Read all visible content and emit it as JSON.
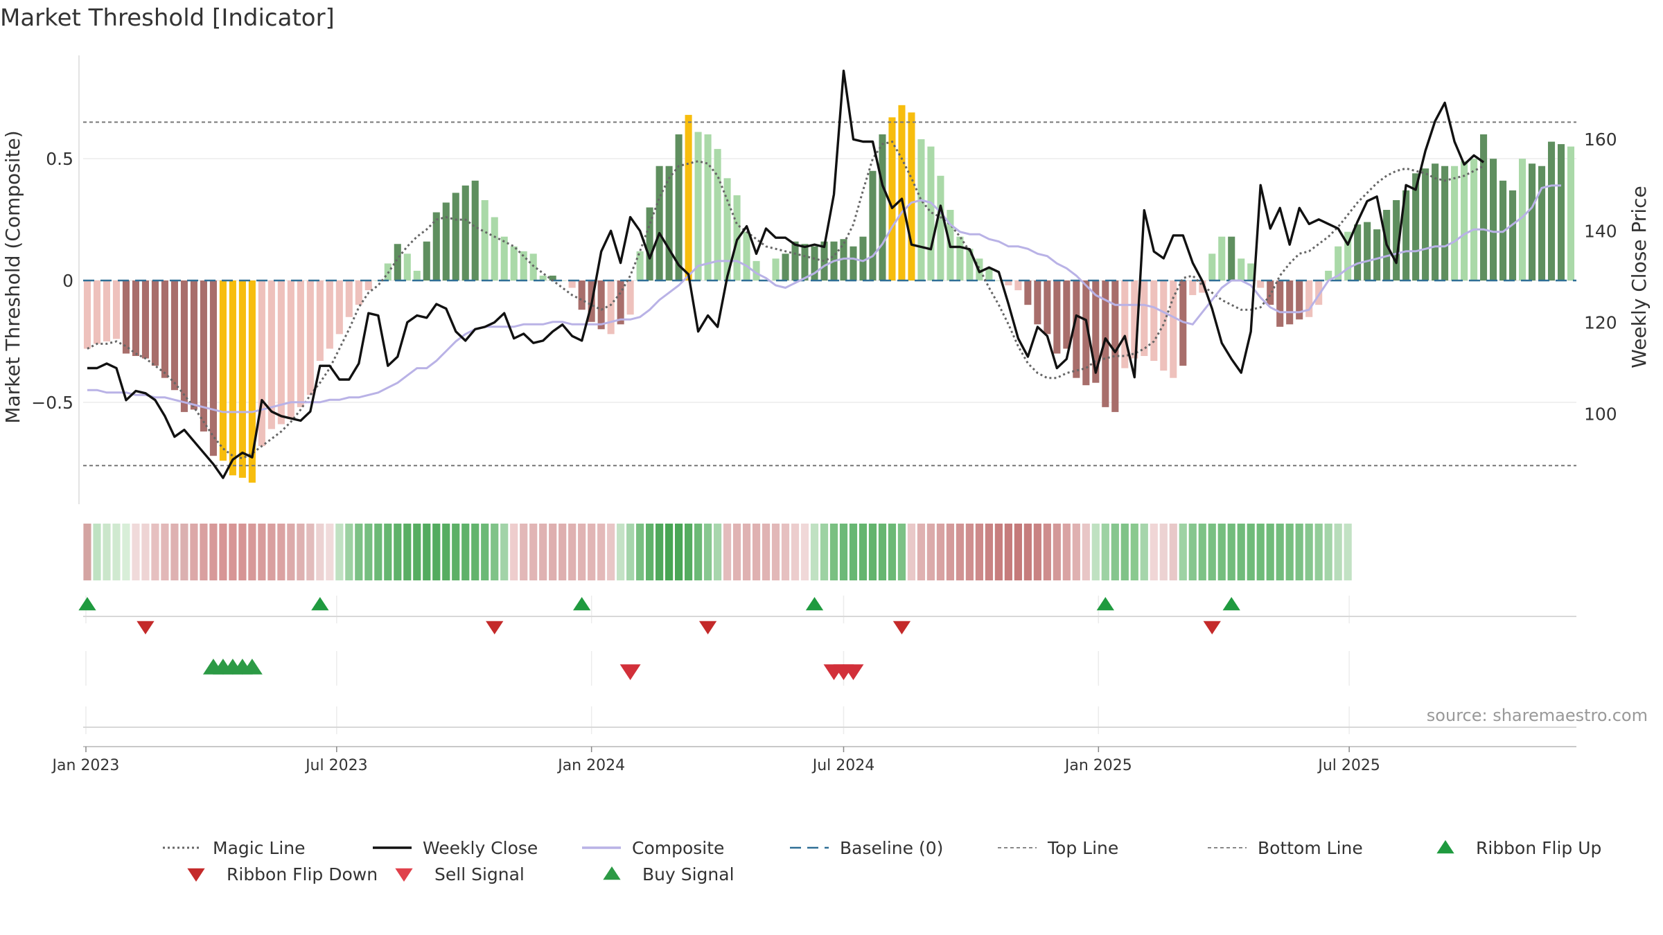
{
  "chart_data": {
    "type": "bar",
    "title": "Market Threshold [Indicator]",
    "ylabel": "Market Threshold (Composite)",
    "y2label": "Weekly Close Price",
    "source_text": "source: sharemaestro.com",
    "ylim": [
      -0.91,
      0.91
    ],
    "y2lim": [
      80.7,
      177.6
    ],
    "yticks": [
      -0.5,
      0,
      0.5
    ],
    "ytick_labels": [
      "−0.5",
      "0",
      "0.5"
    ],
    "y2ticks": [
      100,
      120,
      140,
      160
    ],
    "y2tick_labels": [
      "100",
      "120",
      "140",
      "160"
    ],
    "top_line": 0.65,
    "bottom_line": -0.76,
    "baseline": 0,
    "x_start": "2023-01-02",
    "x_step_days": 7,
    "xticks": [
      {
        "date": "2023-01-01",
        "label": "Jan 2023"
      },
      {
        "date": "2023-07-01",
        "label": "Jul 2023"
      },
      {
        "date": "2024-01-01",
        "label": "Jan 2024"
      },
      {
        "date": "2024-07-01",
        "label": "Jul 2024"
      },
      {
        "date": "2025-01-01",
        "label": "Jan 2025"
      },
      {
        "date": "2025-07-01",
        "label": "Jul 2025"
      }
    ],
    "colors": {
      "strong_pos": "#5f8f5f",
      "weak_pos": "#aad9a8",
      "strong_neg": "#a86e6b",
      "weak_neg": "#eec1bc",
      "extreme": "#f7bd0e",
      "close": "#111111",
      "composite": "#b9b2e6",
      "magic": "#666666",
      "baseline": "#2f6f96",
      "guide": "#777777",
      "signal_up": "#2c9a45",
      "signal_down": "#d2303a"
    },
    "bars": [
      -0.28,
      -0.26,
      -0.25,
      -0.24,
      -0.3,
      -0.31,
      -0.32,
      -0.35,
      -0.4,
      -0.45,
      -0.54,
      -0.53,
      -0.62,
      -0.72,
      -0.74,
      -0.8,
      -0.81,
      -0.83,
      -0.68,
      -0.61,
      -0.59,
      -0.57,
      -0.52,
      -0.47,
      -0.33,
      -0.28,
      -0.22,
      -0.15,
      -0.1,
      -0.04,
      0.0,
      0.07,
      0.15,
      0.11,
      0.04,
      0.16,
      0.28,
      0.32,
      0.36,
      0.39,
      0.41,
      0.33,
      0.26,
      0.18,
      0.14,
      0.12,
      0.11,
      0.02,
      0.02,
      0.0,
      -0.03,
      -0.12,
      -0.17,
      -0.2,
      -0.22,
      -0.18,
      -0.14,
      0.12,
      0.3,
      0.47,
      0.47,
      0.6,
      0.68,
      0.61,
      0.6,
      0.54,
      0.42,
      0.35,
      0.2,
      0.08,
      0.0,
      0.09,
      0.11,
      0.16,
      0.15,
      0.14,
      0.16,
      0.16,
      0.17,
      0.14,
      0.18,
      0.45,
      0.6,
      0.67,
      0.72,
      0.69,
      0.58,
      0.55,
      0.43,
      0.29,
      0.18,
      0.13,
      0.09,
      0.05,
      0.0,
      -0.02,
      -0.04,
      -0.1,
      -0.18,
      -0.22,
      -0.3,
      -0.28,
      -0.4,
      -0.43,
      -0.42,
      -0.52,
      -0.54,
      -0.36,
      -0.32,
      -0.31,
      -0.33,
      -0.37,
      -0.4,
      -0.35,
      -0.06,
      -0.05,
      0.11,
      0.18,
      0.18,
      0.09,
      0.07,
      -0.03,
      -0.1,
      -0.19,
      -0.18,
      -0.16,
      -0.15,
      -0.1,
      0.04,
      0.14,
      0.2,
      0.23,
      0.24,
      0.21,
      0.29,
      0.33,
      0.37,
      0.44,
      0.46,
      0.48,
      0.47,
      0.47,
      0.49,
      0.5,
      0.6,
      0.5,
      0.41,
      0.37,
      0.5,
      0.48,
      0.47,
      0.57,
      0.56,
      0.55
    ],
    "bar_shade": [
      "w",
      "w",
      "w",
      "w",
      "s",
      "s",
      "s",
      "s",
      "s",
      "s",
      "s",
      "s",
      "s",
      "s",
      "e",
      "e",
      "e",
      "e",
      "w",
      "w",
      "w",
      "w",
      "w",
      "w",
      "w",
      "w",
      "w",
      "w",
      "w",
      "w",
      "w",
      "w",
      "s",
      "w",
      "w",
      "s",
      "s",
      "s",
      "s",
      "s",
      "s",
      "w",
      "w",
      "w",
      "w",
      "w",
      "w",
      "w",
      "s",
      "w",
      "w",
      "s",
      "s",
      "s",
      "w",
      "s",
      "w",
      "w",
      "s",
      "s",
      "s",
      "s",
      "e",
      "w",
      "w",
      "w",
      "w",
      "w",
      "w",
      "w",
      "w",
      "w",
      "s",
      "s",
      "s",
      "s",
      "s",
      "s",
      "s",
      "s",
      "s",
      "s",
      "s",
      "e",
      "e",
      "e",
      "w",
      "w",
      "w",
      "w",
      "w",
      "w",
      "w",
      "w",
      "w",
      "w",
      "w",
      "s",
      "s",
      "s",
      "s",
      "s",
      "s",
      "s",
      "s",
      "s",
      "s",
      "w",
      "w",
      "w",
      "w",
      "w",
      "w",
      "s",
      "w",
      "w",
      "w",
      "w",
      "s",
      "w",
      "w",
      "w",
      "s",
      "s",
      "s",
      "s",
      "w",
      "w",
      "w",
      "w",
      "w",
      "s",
      "s",
      "s",
      "s",
      "s",
      "s",
      "s",
      "s",
      "s",
      "s",
      "w",
      "w",
      "w",
      "s",
      "s",
      "s",
      "s",
      "w",
      "s",
      "s",
      "s",
      "s",
      "w",
      "w"
    ],
    "composite": [
      -0.45,
      -0.45,
      -0.46,
      -0.46,
      -0.46,
      -0.47,
      -0.47,
      -0.48,
      -0.48,
      -0.49,
      -0.5,
      -0.51,
      -0.52,
      -0.53,
      -0.54,
      -0.54,
      -0.54,
      -0.54,
      -0.53,
      -0.52,
      -0.51,
      -0.5,
      -0.5,
      -0.5,
      -0.5,
      -0.49,
      -0.49,
      -0.48,
      -0.48,
      -0.47,
      -0.46,
      -0.44,
      -0.42,
      -0.39,
      -0.36,
      -0.36,
      -0.33,
      -0.29,
      -0.25,
      -0.22,
      -0.2,
      -0.19,
      -0.19,
      -0.19,
      -0.19,
      -0.18,
      -0.18,
      -0.18,
      -0.17,
      -0.17,
      -0.18,
      -0.18,
      -0.18,
      -0.18,
      -0.17,
      -0.16,
      -0.16,
      -0.15,
      -0.12,
      -0.08,
      -0.05,
      -0.02,
      0.02,
      0.06,
      0.07,
      0.08,
      0.08,
      0.08,
      0.06,
      0.03,
      0.01,
      -0.02,
      -0.03,
      -0.01,
      0.01,
      0.03,
      0.06,
      0.08,
      0.09,
      0.09,
      0.08,
      0.1,
      0.15,
      0.22,
      0.28,
      0.32,
      0.33,
      0.32,
      0.28,
      0.23,
      0.2,
      0.19,
      0.19,
      0.17,
      0.16,
      0.14,
      0.14,
      0.13,
      0.11,
      0.1,
      0.07,
      0.05,
      0.02,
      -0.02,
      -0.06,
      -0.08,
      -0.1,
      -0.1,
      -0.1,
      -0.1,
      -0.11,
      -0.13,
      -0.15,
      -0.17,
      -0.18,
      -0.13,
      -0.08,
      -0.03,
      0.0,
      0.0,
      -0.02,
      -0.07,
      -0.11,
      -0.13,
      -0.13,
      -0.13,
      -0.12,
      -0.06,
      0.0,
      0.02,
      0.05,
      0.07,
      0.08,
      0.09,
      0.1,
      0.11,
      0.12,
      0.12,
      0.13,
      0.14,
      0.14,
      0.16,
      0.19,
      0.21,
      0.21,
      0.2,
      0.2,
      0.23,
      0.26,
      0.3,
      0.38,
      0.39,
      0.39
    ],
    "magic": [
      -0.28,
      -0.26,
      -0.26,
      -0.25,
      -0.27,
      -0.3,
      -0.32,
      -0.35,
      -0.38,
      -0.42,
      -0.47,
      -0.52,
      -0.58,
      -0.64,
      -0.69,
      -0.72,
      -0.73,
      -0.71,
      -0.68,
      -0.65,
      -0.62,
      -0.58,
      -0.53,
      -0.47,
      -0.42,
      -0.36,
      -0.28,
      -0.2,
      -0.11,
      -0.05,
      -0.02,
      0.03,
      0.09,
      0.14,
      0.18,
      0.21,
      0.25,
      0.26,
      0.25,
      0.25,
      0.22,
      0.2,
      0.18,
      0.16,
      0.14,
      0.1,
      0.06,
      0.03,
      0.0,
      -0.03,
      -0.06,
      -0.08,
      -0.1,
      -0.12,
      -0.1,
      -0.05,
      0.02,
      0.12,
      0.23,
      0.34,
      0.42,
      0.47,
      0.48,
      0.49,
      0.48,
      0.43,
      0.33,
      0.23,
      0.2,
      0.17,
      0.14,
      0.13,
      0.12,
      0.11,
      0.1,
      0.09,
      0.08,
      0.1,
      0.15,
      0.23,
      0.37,
      0.5,
      0.56,
      0.57,
      0.5,
      0.42,
      0.33,
      0.28,
      0.26,
      0.23,
      0.18,
      0.12,
      0.05,
      -0.03,
      -0.1,
      -0.18,
      -0.27,
      -0.34,
      -0.38,
      -0.4,
      -0.4,
      -0.38,
      -0.37,
      -0.36,
      -0.33,
      -0.32,
      -0.31,
      -0.31,
      -0.3,
      -0.28,
      -0.25,
      -0.18,
      -0.07,
      0.01,
      0.02,
      -0.02,
      -0.05,
      -0.08,
      -0.1,
      -0.12,
      -0.12,
      -0.11,
      -0.06,
      0.02,
      0.07,
      0.11,
      0.12,
      0.15,
      0.18,
      0.22,
      0.27,
      0.32,
      0.36,
      0.4,
      0.43,
      0.45,
      0.46,
      0.45,
      0.44,
      0.42,
      0.41,
      0.42,
      0.43,
      0.45,
      0.47
    ],
    "close": [
      110,
      110,
      111,
      110,
      103,
      105,
      104.5,
      103,
      99.5,
      95,
      96.5,
      94,
      91.5,
      89,
      86,
      90,
      91.5,
      90.5,
      103,
      100.5,
      99.5,
      99,
      98.5,
      100.5,
      110.5,
      110.5,
      107.5,
      107.5,
      111,
      122,
      121.5,
      110.5,
      112.5,
      120,
      121.5,
      121,
      124,
      123,
      118,
      116,
      118.5,
      119,
      120,
      122,
      116.5,
      117.5,
      115.5,
      116,
      118,
      119.5,
      117,
      116,
      124,
      135.5,
      140,
      133,
      143,
      140,
      134,
      139.5,
      136,
      132.5,
      130.5,
      118,
      121.5,
      119,
      130,
      138,
      141,
      135,
      140.5,
      138.5,
      138.5,
      137,
      136.5,
      137,
      136.5,
      148,
      175,
      160,
      159.5,
      159.5,
      150,
      145,
      147,
      137,
      136.5,
      136,
      145.5,
      136.5,
      136.5,
      136,
      131,
      132,
      131,
      124,
      116.5,
      112.5,
      119,
      117,
      110,
      112,
      121.5,
      120.5,
      109,
      116.5,
      113.5,
      117,
      108,
      144.5,
      135.5,
      134,
      139,
      139,
      133,
      129,
      123,
      115.5,
      112,
      109,
      118,
      150,
      140.5,
      145,
      137,
      145,
      141.5,
      142.5,
      141.5,
      140.5,
      137,
      142,
      146.5,
      147.5,
      137,
      133,
      150,
      149,
      157.5,
      164,
      168,
      159.5,
      154.5,
      156.5,
      155
    ],
    "ribbon_colors": [
      "#d4a4a2",
      "#bfe2c2",
      "#cbe6cb",
      "#d0e9d0",
      "#d8eed8",
      "#f0dada",
      "#eed4d4",
      "#e6c0c0",
      "#e2b8b8",
      "#deb1b1",
      "#dbb0b0",
      "#dca8a8",
      "#d9a0a0",
      "#d79999",
      "#d79595",
      "#d79595",
      "#d69494",
      "#d79999",
      "#d89c9c",
      "#d99f9f",
      "#dba2a2",
      "#dcaaaa",
      "#deb1b1",
      "#e2bcbc",
      "#ecd2d2",
      "#f0dada",
      "#c0e1c2",
      "#9cd1a2",
      "#7cc185",
      "#76be80",
      "#6cb976",
      "#66b670",
      "#5fb26a",
      "#59ae64",
      "#56ad61",
      "#53ab5f",
      "#53ab5f",
      "#56ad61",
      "#5cb066",
      "#5fb26a",
      "#63b46d",
      "#6cb976",
      "#80c388",
      "#a2d3a8",
      "#eecdcd",
      "#e2b8b8",
      "#e1b5b5",
      "#dfb2b2",
      "#deafaf",
      "#deafaf",
      "#dfb1b1",
      "#e0b3b3",
      "#e1b5b5",
      "#e3b9b9",
      "#e8c6c6",
      "#c3e2c5",
      "#a5d5ab",
      "#78bf81",
      "#5fb26a",
      "#4fa85b",
      "#47a553",
      "#4aa656",
      "#55ac60",
      "#6cb976",
      "#88c790",
      "#a8d6ad",
      "#e3bcbc",
      "#e0b3b3",
      "#dfb2b2",
      "#dfb1b1",
      "#e0b3b3",
      "#e2b8b8",
      "#e6c0c0",
      "#eccdcd",
      "#f0d8d8",
      "#c0e1c2",
      "#9dd2a3",
      "#7ac081",
      "#6db978",
      "#68b773",
      "#65b56f",
      "#63b46d",
      "#67b671",
      "#6cb976",
      "#7cc185",
      "#e9c8c8",
      "#dfb1b1",
      "#dbaaaa",
      "#d8a2a2",
      "#d49a9a",
      "#d19393",
      "#cf8f8f",
      "#cd8a8a",
      "#c98383",
      "#c77e7e",
      "#c67c7c",
      "#c57a7a",
      "#c67d7d",
      "#c98383",
      "#ce8d8d",
      "#d39898",
      "#d9a3a3",
      "#dfb1b1",
      "#e8c6c6",
      "#bfe1c1",
      "#9dd2a3",
      "#86c68e",
      "#80c388",
      "#8ac98f",
      "#a6d5ab",
      "#f0d6d6",
      "#ecd2d2",
      "#e8c8c8",
      "#9ed2a4",
      "#86c68e",
      "#7dc286",
      "#79c082",
      "#75be7e",
      "#72bc7c",
      "#70bb7a",
      "#6fbb79",
      "#6fbb79",
      "#70bb7a",
      "#73bc7d",
      "#77bf80",
      "#7cc185",
      "#86c68e",
      "#92cc98",
      "#a3d4a8",
      "#b7dcba",
      "#c2e2c4"
    ],
    "ribbon_flip_up": [
      "2023-01-02",
      "2023-06-19",
      "2023-12-25",
      "2024-06-10",
      "2025-01-06",
      "2025-04-07"
    ],
    "ribbon_flip_down": [
      "2023-02-13",
      "2023-10-23",
      "2024-03-25",
      "2024-08-12",
      "2025-03-24"
    ],
    "buy_signal": [
      "2023-04-03",
      "2023-04-10",
      "2023-04-17",
      "2023-04-24",
      "2023-05-01"
    ],
    "sell_signal": [
      "2024-01-29",
      "2024-06-24",
      "2024-07-01",
      "2024-07-08"
    ],
    "legend": [
      {
        "label": "Magic Line",
        "kind": "dotted",
        "color": "#666666"
      },
      {
        "label": "Weekly Close",
        "kind": "solid",
        "color": "#111111"
      },
      {
        "label": "Composite",
        "kind": "solid",
        "color": "#b9b2e6"
      },
      {
        "label": "Baseline (0)",
        "kind": "dashed",
        "color": "#2f6f96"
      },
      {
        "label": "Top Line",
        "kind": "fine",
        "color": "#888888"
      },
      {
        "label": "Bottom Line",
        "kind": "fine",
        "color": "#888888"
      },
      {
        "label": "Ribbon Flip Up",
        "kind": "tri-up",
        "color": "#1f9a3f"
      },
      {
        "label": "Ribbon Flip Down",
        "kind": "tri-down",
        "color": "#c42a2a"
      },
      {
        "label": "Sell Signal",
        "kind": "tri-down",
        "color": "#e0414b"
      },
      {
        "label": "Buy Signal",
        "kind": "tri-up",
        "color": "#2c9a45"
      }
    ]
  }
}
